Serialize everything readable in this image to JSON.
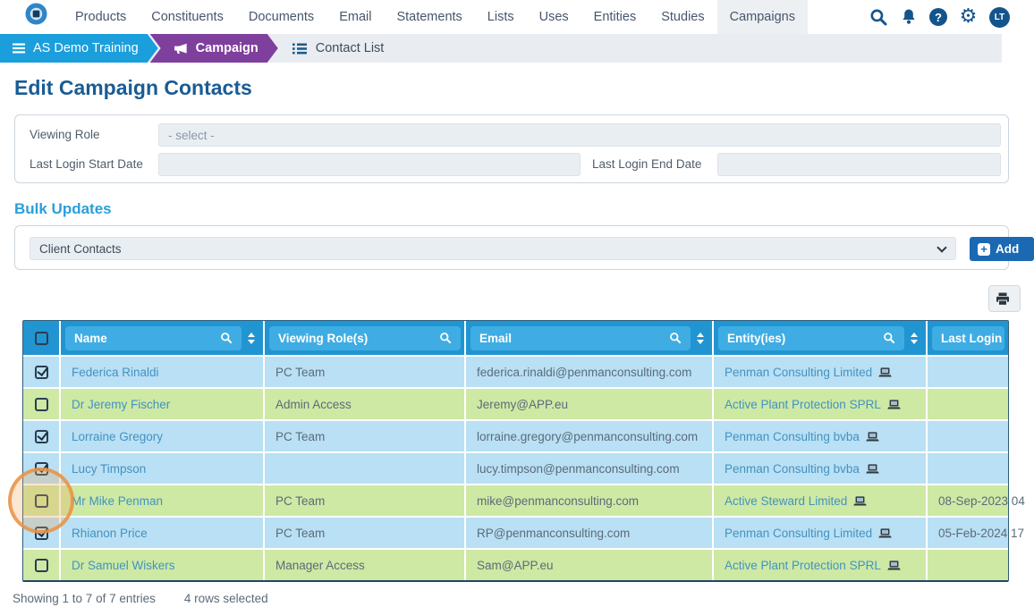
{
  "nav": {
    "items": [
      "Products",
      "Constituents",
      "Documents",
      "Email",
      "Statements",
      "Lists",
      "Uses",
      "Entities",
      "Studies",
      "Campaigns"
    ],
    "active_item": "Campaigns",
    "avatar_initials": "LT"
  },
  "breadcrumb": {
    "workspace": "AS Demo Training",
    "section": "Campaign",
    "page": "Contact List"
  },
  "page": {
    "title": "Edit Campaign Contacts"
  },
  "filters": {
    "viewing_role_label": "Viewing Role",
    "viewing_role_value": "- select -",
    "start_date_label": "Last Login Start Date",
    "start_date_value": "",
    "end_date_label": "Last Login End Date",
    "end_date_value": ""
  },
  "bulk_updates": {
    "heading": "Bulk Updates",
    "selected_option": "Client Contacts",
    "add_button_label": "Add"
  },
  "table": {
    "columns": [
      {
        "type": "checkbox",
        "label": ""
      },
      {
        "label": "Name",
        "search": true,
        "sort": true
      },
      {
        "label": "Viewing Role(s)",
        "search": true,
        "sort": false
      },
      {
        "label": "Email",
        "search": true,
        "sort": true
      },
      {
        "label": "Entity(ies)",
        "search": true,
        "sort": true
      },
      {
        "label": "Last Login",
        "search": false,
        "sort": false
      }
    ],
    "rows": [
      {
        "selected": true,
        "name": "Federica Rinaldi",
        "viewing_roles": "PC Team",
        "email": "federica.rinaldi@penmanconsulting.com",
        "entities": "Penman Consulting Limited",
        "last_login": ""
      },
      {
        "selected": false,
        "name": "Dr Jeremy Fischer",
        "viewing_roles": "Admin Access",
        "email": "Jeremy@APP.eu",
        "entities": "Active Plant Protection SPRL",
        "last_login": ""
      },
      {
        "selected": true,
        "name": "Lorraine Gregory",
        "viewing_roles": "PC Team",
        "email": "lorraine.gregory@penmanconsulting.com",
        "entities": "Penman Consulting bvba",
        "last_login": ""
      },
      {
        "selected": true,
        "name": "Lucy Timpson",
        "viewing_roles": "",
        "email": "lucy.timpson@penmanconsulting.com",
        "entities": "Penman Consulting bvba",
        "last_login": ""
      },
      {
        "selected": false,
        "name": "Mr Mike Penman",
        "viewing_roles": "PC Team",
        "email": "mike@penmanconsulting.com",
        "entities": "Active Steward Limited",
        "last_login": "08-Sep-2023 04",
        "annotated": true
      },
      {
        "selected": true,
        "name": "Rhianon Price",
        "viewing_roles": "PC Team",
        "email": "RP@penmanconsulting.com",
        "entities": "Penman Consulting Limited",
        "last_login": "05-Feb-2024 17"
      },
      {
        "selected": false,
        "name": "Dr Samuel Wiskers",
        "viewing_roles": "Manager Access",
        "email": "Sam@APP.eu",
        "entities": "Active Plant Protection SPRL",
        "last_login": ""
      }
    ],
    "summary": "Showing 1 to 7 of 7 entries",
    "selection_summary": "4 rows selected"
  },
  "colors": {
    "header_blue": "#2095d2",
    "header_pill_blue": "#3fade4",
    "row_selected_blue": "#b9e0f4",
    "row_unselected_green": "#cde9a4",
    "breadcrumb_blue": "#1b9edc",
    "breadcrumb_purple": "#7e3f9d",
    "link_blue": "#4492c2",
    "accent_heading_blue": "#2b9fd9",
    "title_blue": "#1a5c94",
    "button_blue": "#1b69b2",
    "icon_navy": "#14548c",
    "annotation_orange": "#e99044"
  }
}
